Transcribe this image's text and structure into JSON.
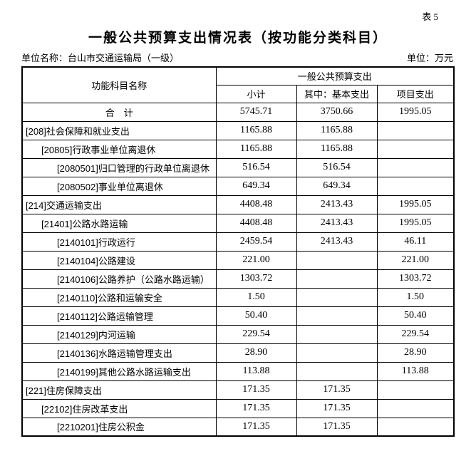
{
  "page": {
    "table_tag": "表 5",
    "title": "一般公共预算支出情况表（按功能分类科目）",
    "unit_name": "单位名称：台山市交通运输局（一级）",
    "unit": "单位：万元"
  },
  "table": {
    "header": {
      "name_col": "功能科目名称",
      "group": "一般公共预算支出",
      "subcols": [
        "小计",
        "其中：基本支出",
        "项目支出"
      ]
    },
    "rows": [
      {
        "name": "合　计",
        "level": 0,
        "center": true,
        "values": [
          "5745.71",
          "3750.66",
          "1995.05"
        ]
      },
      {
        "name": "[208]社会保障和就业支出",
        "level": 0,
        "center": false,
        "values": [
          "1165.88",
          "1165.88",
          ""
        ]
      },
      {
        "name": "[20805]行政事业单位离退休",
        "level": 1,
        "center": false,
        "values": [
          "1165.88",
          "1165.88",
          ""
        ]
      },
      {
        "name": "[2080501]归口管理的行政单位离退休",
        "level": 2,
        "center": false,
        "values": [
          "516.54",
          "516.54",
          ""
        ]
      },
      {
        "name": "[2080502]事业单位离退休",
        "level": 2,
        "center": false,
        "values": [
          "649.34",
          "649.34",
          ""
        ]
      },
      {
        "name": "[214]交通运输支出",
        "level": 0,
        "center": false,
        "values": [
          "4408.48",
          "2413.43",
          "1995.05"
        ]
      },
      {
        "name": "[21401]公路水路运输",
        "level": 1,
        "center": false,
        "values": [
          "4408.48",
          "2413.43",
          "1995.05"
        ]
      },
      {
        "name": "[2140101]行政运行",
        "level": 2,
        "center": false,
        "values": [
          "2459.54",
          "2413.43",
          "46.11"
        ]
      },
      {
        "name": "[2140104]公路建设",
        "level": 2,
        "center": false,
        "values": [
          "221.00",
          "",
          "221.00"
        ]
      },
      {
        "name": "[2140106]公路养护（公路水路运输）",
        "level": 2,
        "center": false,
        "values": [
          "1303.72",
          "",
          "1303.72"
        ]
      },
      {
        "name": "[2140110]公路和运输安全",
        "level": 2,
        "center": false,
        "values": [
          "1.50",
          "",
          "1.50"
        ]
      },
      {
        "name": "[2140112]公路运输管理",
        "level": 2,
        "center": false,
        "values": [
          "50.40",
          "",
          "50.40"
        ]
      },
      {
        "name": "[2140129]内河运输",
        "level": 2,
        "center": false,
        "values": [
          "229.54",
          "",
          "229.54"
        ]
      },
      {
        "name": "[2140136]水路运输管理支出",
        "level": 2,
        "center": false,
        "values": [
          "28.90",
          "",
          "28.90"
        ]
      },
      {
        "name": "[2140199]其他公路水路运输支出",
        "level": 2,
        "center": false,
        "values": [
          "113.88",
          "",
          "113.88"
        ]
      },
      {
        "name": "[221]住房保障支出",
        "level": 0,
        "center": false,
        "values": [
          "171.35",
          "171.35",
          ""
        ]
      },
      {
        "name": "[22102]住房改革支出",
        "level": 1,
        "center": false,
        "values": [
          "171.35",
          "171.35",
          ""
        ]
      },
      {
        "name": "[2210201]住房公积金",
        "level": 2,
        "center": false,
        "values": [
          "171.35",
          "171.35",
          ""
        ]
      }
    ]
  }
}
